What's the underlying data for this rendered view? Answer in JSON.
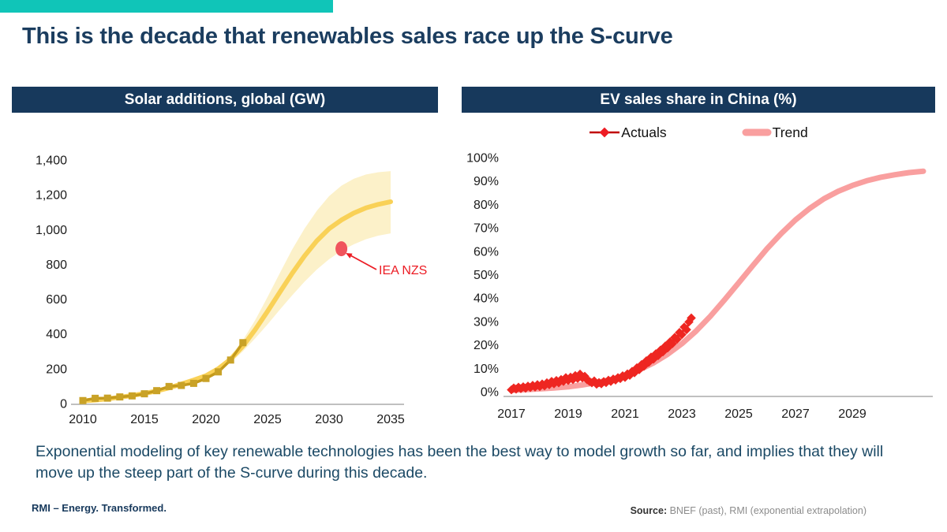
{
  "page": {
    "title": "This is the decade that renewables sales race up the S-curve",
    "accent_color": "#10C5B8",
    "navy": "#17395C",
    "summary": "Exponential modeling of key renewable technologies has been the best way to model growth so far, and implies that they will move up the steep part of the S-curve during this decade.",
    "brand": "RMI – Energy. Transformed.",
    "source_label": "Source:",
    "source_text": " BNEF (past), RMI (exponential extrapolation)"
  },
  "chart_data": [
    {
      "type": "line",
      "title": "Solar additions, global (GW)",
      "xlabel": "",
      "ylabel": "GW",
      "xlim": [
        2009.5,
        2036
      ],
      "ylim": [
        0,
        1400
      ],
      "grid": false,
      "x_ticks": [
        2010,
        2015,
        2020,
        2025,
        2030,
        2035
      ],
      "y_ticks": [
        0,
        200,
        400,
        600,
        800,
        1000,
        1200,
        1400
      ],
      "y_tick_labels": [
        "0",
        "200",
        "400",
        "600",
        "800",
        "1,000",
        "1,200",
        "1,400"
      ],
      "series": [
        {
          "name": "Uncertainty band",
          "type": "band",
          "color": "#FCF1C9",
          "x": [
            2022,
            2023,
            2024,
            2025,
            2026,
            2027,
            2028,
            2029,
            2030,
            2031,
            2032,
            2033,
            2034,
            2035
          ],
          "lower": [
            235,
            300,
            375,
            455,
            540,
            622,
            700,
            770,
            830,
            878,
            915,
            945,
            965,
            978
          ],
          "upper": [
            275,
            365,
            480,
            612,
            750,
            885,
            1005,
            1108,
            1192,
            1252,
            1292,
            1317,
            1330,
            1336
          ]
        },
        {
          "name": "Trend (exponential extrapolation)",
          "type": "line",
          "color": "#F9D157",
          "width": 6,
          "x": [
            2010,
            2011,
            2012,
            2013,
            2014,
            2015,
            2016,
            2017,
            2018,
            2019,
            2020,
            2021,
            2022,
            2023,
            2024,
            2025,
            2026,
            2027,
            2028,
            2029,
            2030,
            2031,
            2032,
            2033,
            2034,
            2035
          ],
          "values": [
            15,
            20,
            27,
            36,
            46,
            58,
            72,
            90,
            112,
            135,
            160,
            200,
            255,
            330,
            425,
            530,
            640,
            748,
            848,
            935,
            1005,
            1055,
            1095,
            1125,
            1145,
            1160
          ]
        },
        {
          "name": "Actuals",
          "type": "line",
          "color": "#C49A1C",
          "width": 3.5,
          "marker": "square",
          "marker_color": "#C9A227",
          "x": [
            2010,
            2011,
            2012,
            2013,
            2014,
            2015,
            2016,
            2017,
            2018,
            2019,
            2020,
            2021,
            2022,
            2023
          ],
          "values": [
            17,
            30,
            31,
            38,
            44,
            56,
            74,
            98,
            104,
            116,
            144,
            182,
            250,
            350
          ]
        }
      ],
      "annotation": {
        "label": "IEA NZS",
        "x": 2031,
        "y": 890,
        "dot_color": "#F0545C",
        "color": "#EC1C24"
      }
    },
    {
      "type": "line",
      "title": "EV sales share in China (%)",
      "xlabel": "",
      "ylabel": "%",
      "xlim": [
        2016.7,
        2031.8
      ],
      "ylim": [
        0,
        100
      ],
      "grid": false,
      "legend_position": "top",
      "x_ticks": [
        2017,
        2019,
        2021,
        2023,
        2025,
        2027,
        2029
      ],
      "y_ticks": [
        0,
        10,
        20,
        30,
        40,
        50,
        60,
        70,
        80,
        90,
        100
      ],
      "y_tick_labels": [
        "0%",
        "10%",
        "20%",
        "30%",
        "40%",
        "50%",
        "60%",
        "70%",
        "80%",
        "90%",
        "100%"
      ],
      "legend": [
        {
          "label": "Actuals",
          "color": "#C00000",
          "marker_color": "#ED1C24",
          "style": "line-with-diamond"
        },
        {
          "label": "Trend",
          "color": "#F99F9F",
          "style": "thick-line"
        }
      ],
      "series": [
        {
          "name": "Trend (logistic S-curve)",
          "type": "line",
          "color": "#F99F9F",
          "width": 7,
          "x": [
            2017,
            2017.5,
            2018,
            2018.5,
            2019,
            2019.5,
            2020,
            2020.5,
            2021,
            2021.5,
            2022,
            2022.5,
            2023,
            2023.5,
            2024,
            2024.5,
            2025,
            2025.5,
            2026,
            2026.5,
            2027,
            2027.5,
            2028,
            2028.5,
            2029,
            2029.5,
            2030,
            2030.5,
            2031,
            2031.5
          ],
          "values": [
            0.6,
            0.9,
            1.2,
            1.6,
            2.1,
            2.9,
            3.9,
            5.2,
            7.0,
            9.3,
            12.3,
            16.0,
            20.5,
            25.9,
            32.2,
            39.2,
            46.5,
            53.9,
            61.1,
            67.6,
            73.4,
            78.3,
            82.4,
            85.6,
            88.1,
            90.1,
            91.6,
            92.7,
            93.6,
            94.2
          ]
        },
        {
          "name": "Actuals (monthly)",
          "type": "line",
          "color": "#DC241F",
          "width": 2.5,
          "marker": "diamond",
          "marker_color": "#EE2621",
          "x_start": 2017,
          "x_step_months": 1,
          "values": [
            0.8,
            1.6,
            1.1,
            1.9,
            1.3,
            2.1,
            1.5,
            2.4,
            1.8,
            2.7,
            2.0,
            3.0,
            2.2,
            3.3,
            2.5,
            3.8,
            3.0,
            4.4,
            3.4,
            4.8,
            3.8,
            5.2,
            4.4,
            6.0,
            4.8,
            6.2,
            5.2,
            6.9,
            5.7,
            7.5,
            5.9,
            6.6,
            5.1,
            4.4,
            3.8,
            4.6,
            3.2,
            3.9,
            3.4,
            4.3,
            3.9,
            4.9,
            4.4,
            5.4,
            5.0,
            6.0,
            5.6,
            6.8,
            6.1,
            7.6,
            7.0,
            8.7,
            8.1,
            10.2,
            9.4,
            11.6,
            10.9,
            13.2,
            12.5,
            14.8,
            13.9,
            16.2,
            15.4,
            17.8,
            17.0,
            19.5,
            18.7,
            21.3,
            20.5,
            23.2,
            22.4,
            25.3,
            24.4,
            27.6,
            26.5,
            29.8,
            31.5
          ]
        }
      ]
    }
  ]
}
